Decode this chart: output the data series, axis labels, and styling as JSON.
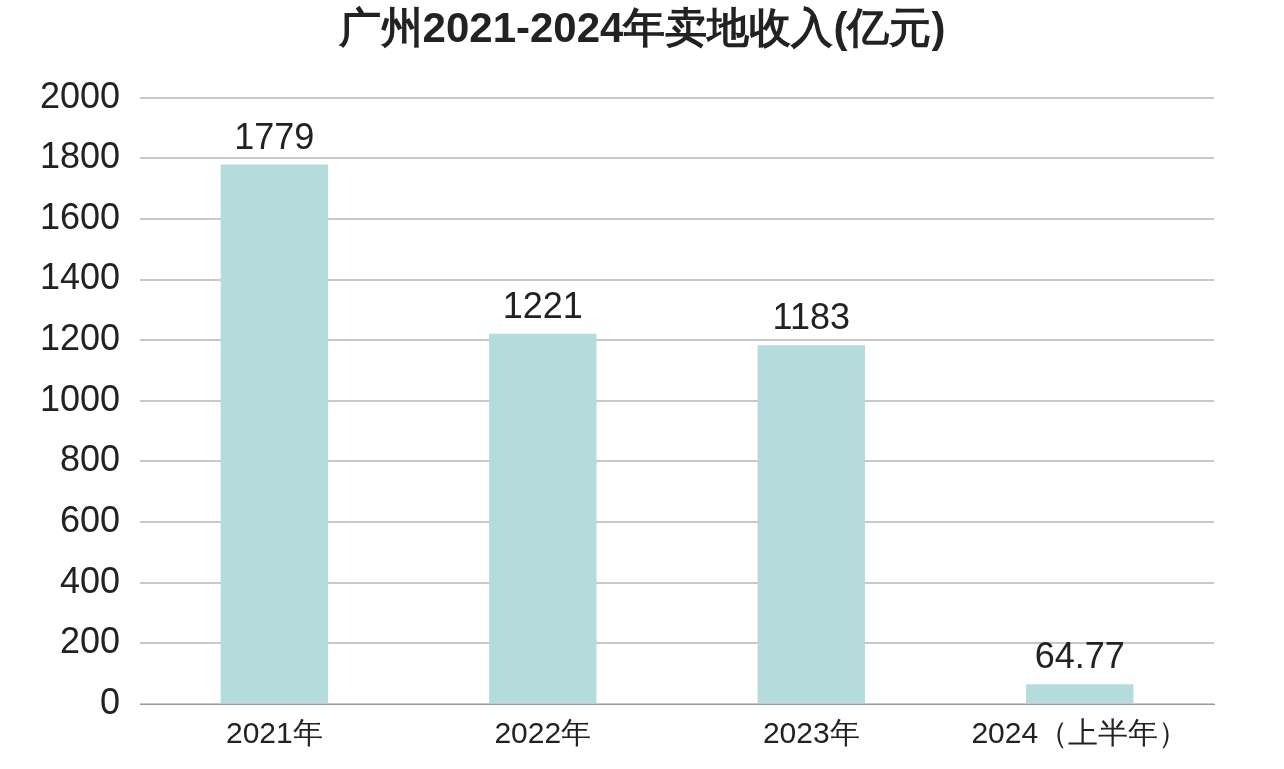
{
  "chart_data": {
    "type": "bar",
    "title": "广州2021-2024年卖地收入(亿元)",
    "categories": [
      "2021年",
      "2022年",
      "2023年",
      "2024（上半年）"
    ],
    "values": [
      1779,
      1221,
      1183,
      64.77
    ],
    "color": "#b4dcdc",
    "ylim": [
      0,
      2000
    ],
    "yticks": [
      0,
      200,
      400,
      600,
      800,
      1000,
      1200,
      1400,
      1600,
      1800,
      2000
    ],
    "grid": "y",
    "legend": false,
    "data_labels": true
  }
}
